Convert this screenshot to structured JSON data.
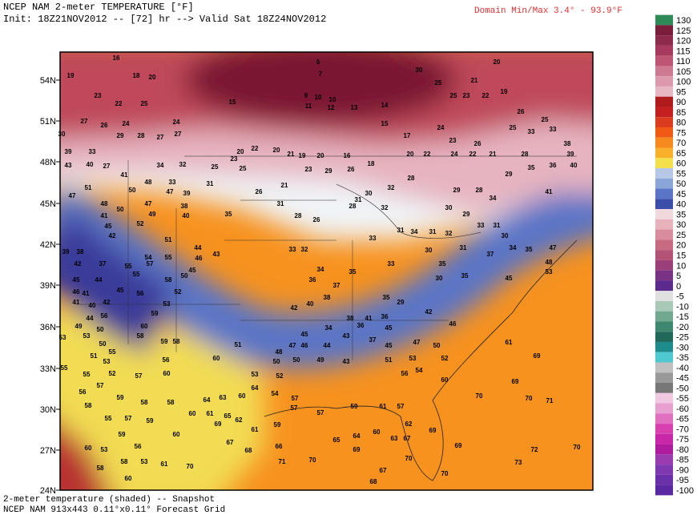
{
  "header": {
    "title": "NCEP NAM 2-meter TEMPERATURE [°F]",
    "init": "Init: 18Z21NOV2012 -- [72] hr --> Valid Sat 18Z24NOV2012",
    "domain_minmax": "Domain Min/Max   3.4° -  93.9°F"
  },
  "footer": {
    "line1": "2-meter temperature (shaded) -- Snapshot",
    "line2": "NCEP NAM 913x443 0.11°x0.11° Forecast Grid"
  },
  "map": {
    "lat_labels": [
      "54N",
      "51N",
      "48N",
      "45N",
      "42N",
      "39N",
      "36N",
      "33N",
      "30N",
      "27N",
      "24N"
    ],
    "stations": [
      16,
      18,
      19,
      20,
      6,
      7,
      30,
      20,
      25,
      21,
      23,
      25,
      23,
      22,
      19,
      22,
      25,
      15,
      9,
      10,
      10,
      11,
      12,
      13,
      14,
      27,
      26,
      24,
      24,
      30,
      29,
      28,
      27,
      27,
      15,
      17,
      24,
      23,
      26,
      25,
      33,
      26,
      25,
      33,
      38,
      39,
      40,
      20,
      22,
      24,
      22,
      21,
      28,
      39,
      33,
      20,
      22,
      20,
      21,
      19,
      20,
      16,
      23,
      29,
      26,
      18,
      43,
      40,
      27,
      34,
      32,
      25,
      23,
      25,
      41,
      48,
      33,
      31,
      26,
      21,
      32,
      28,
      29,
      35,
      36,
      29,
      28,
      34,
      41,
      51,
      50,
      47,
      39,
      31,
      30,
      31,
      32,
      30,
      29,
      47,
      48,
      50,
      47,
      49,
      38,
      40,
      35,
      28,
      28,
      33,
      31,
      41,
      52,
      45,
      42,
      51,
      26,
      33,
      31,
      34,
      31,
      32,
      30,
      39,
      38,
      54,
      55,
      44,
      43,
      46,
      33,
      32,
      30,
      31,
      37,
      34,
      35,
      47,
      42,
      37,
      55,
      57,
      45,
      34,
      35,
      33,
      35,
      48,
      53,
      45,
      44,
      55,
      58,
      50,
      36,
      37,
      30,
      35,
      45,
      46,
      41,
      45,
      56,
      52,
      38,
      35,
      29,
      41,
      40,
      42,
      53,
      42,
      40,
      59,
      56,
      44,
      60,
      49,
      50,
      41,
      38,
      36,
      42,
      46,
      34,
      36,
      45,
      43,
      45,
      58,
      59,
      58,
      53,
      53,
      50,
      37,
      45,
      47,
      50,
      61,
      51,
      47,
      46,
      44,
      48,
      51,
      55,
      53,
      56,
      60,
      50,
      50,
      49,
      43,
      51,
      53,
      52,
      69,
      55,
      55,
      52,
      57,
      60,
      53,
      52,
      56,
      54,
      60,
      69,
      56,
      57,
      59,
      58,
      58,
      64,
      63,
      60,
      64,
      54,
      57,
      70,
      70,
      71,
      58,
      55,
      57,
      59,
      60,
      61,
      65,
      62,
      57,
      57,
      59,
      61,
      57,
      69,
      61,
      59,
      60,
      63,
      62,
      69,
      60,
      59,
      53,
      56,
      60,
      67,
      65,
      64,
      69,
      67,
      69,
      72,
      70,
      68,
      66,
      71,
      70,
      58,
      53,
      61,
      70,
      67,
      70,
      73,
      58,
      60,
      70,
      68
    ]
  },
  "colorbar": {
    "levels": [
      130,
      125,
      120,
      115,
      110,
      105,
      100,
      95,
      90,
      85,
      80,
      75,
      70,
      65,
      60,
      55,
      50,
      45,
      40,
      35,
      30,
      25,
      20,
      15,
      10,
      5,
      0,
      -5,
      -10,
      -15,
      -20,
      -25,
      -30,
      -35,
      -40,
      -45,
      -50,
      -55,
      -60,
      -65,
      -70,
      -75,
      -80,
      -85,
      -90,
      -95,
      -100
    ],
    "colors": [
      "#2e8b57",
      "#7a1e3c",
      "#8e2a4c",
      "#a63a5e",
      "#bd5575",
      "#cf7a93",
      "#dd9aae",
      "#e8b7c4",
      "#b01c1c",
      "#c42020",
      "#dc3c1e",
      "#f05a14",
      "#f78a1e",
      "#f9b02a",
      "#f3e04a",
      "#b7c8e6",
      "#8aa5d8",
      "#5a74c6",
      "#3a4eaa",
      "#f0d8dc",
      "#e8b2bc",
      "#d88c9c",
      "#c86b82",
      "#b45276",
      "#9a3f78",
      "#7a3284",
      "#5a2a8c",
      "#e0e0e0",
      "#a8c8b8",
      "#70a890",
      "#3e8870",
      "#226858",
      "#1e8c8c",
      "#50c8d0",
      "#c0c0c0",
      "#999999",
      "#777777",
      "#f0c8e0",
      "#e8a0d0",
      "#e070c0",
      "#d840b0",
      "#c828a8",
      "#b01ca0",
      "#9a3cb0",
      "#8038b0",
      "#6a30a8",
      "#5a28a0"
    ]
  }
}
